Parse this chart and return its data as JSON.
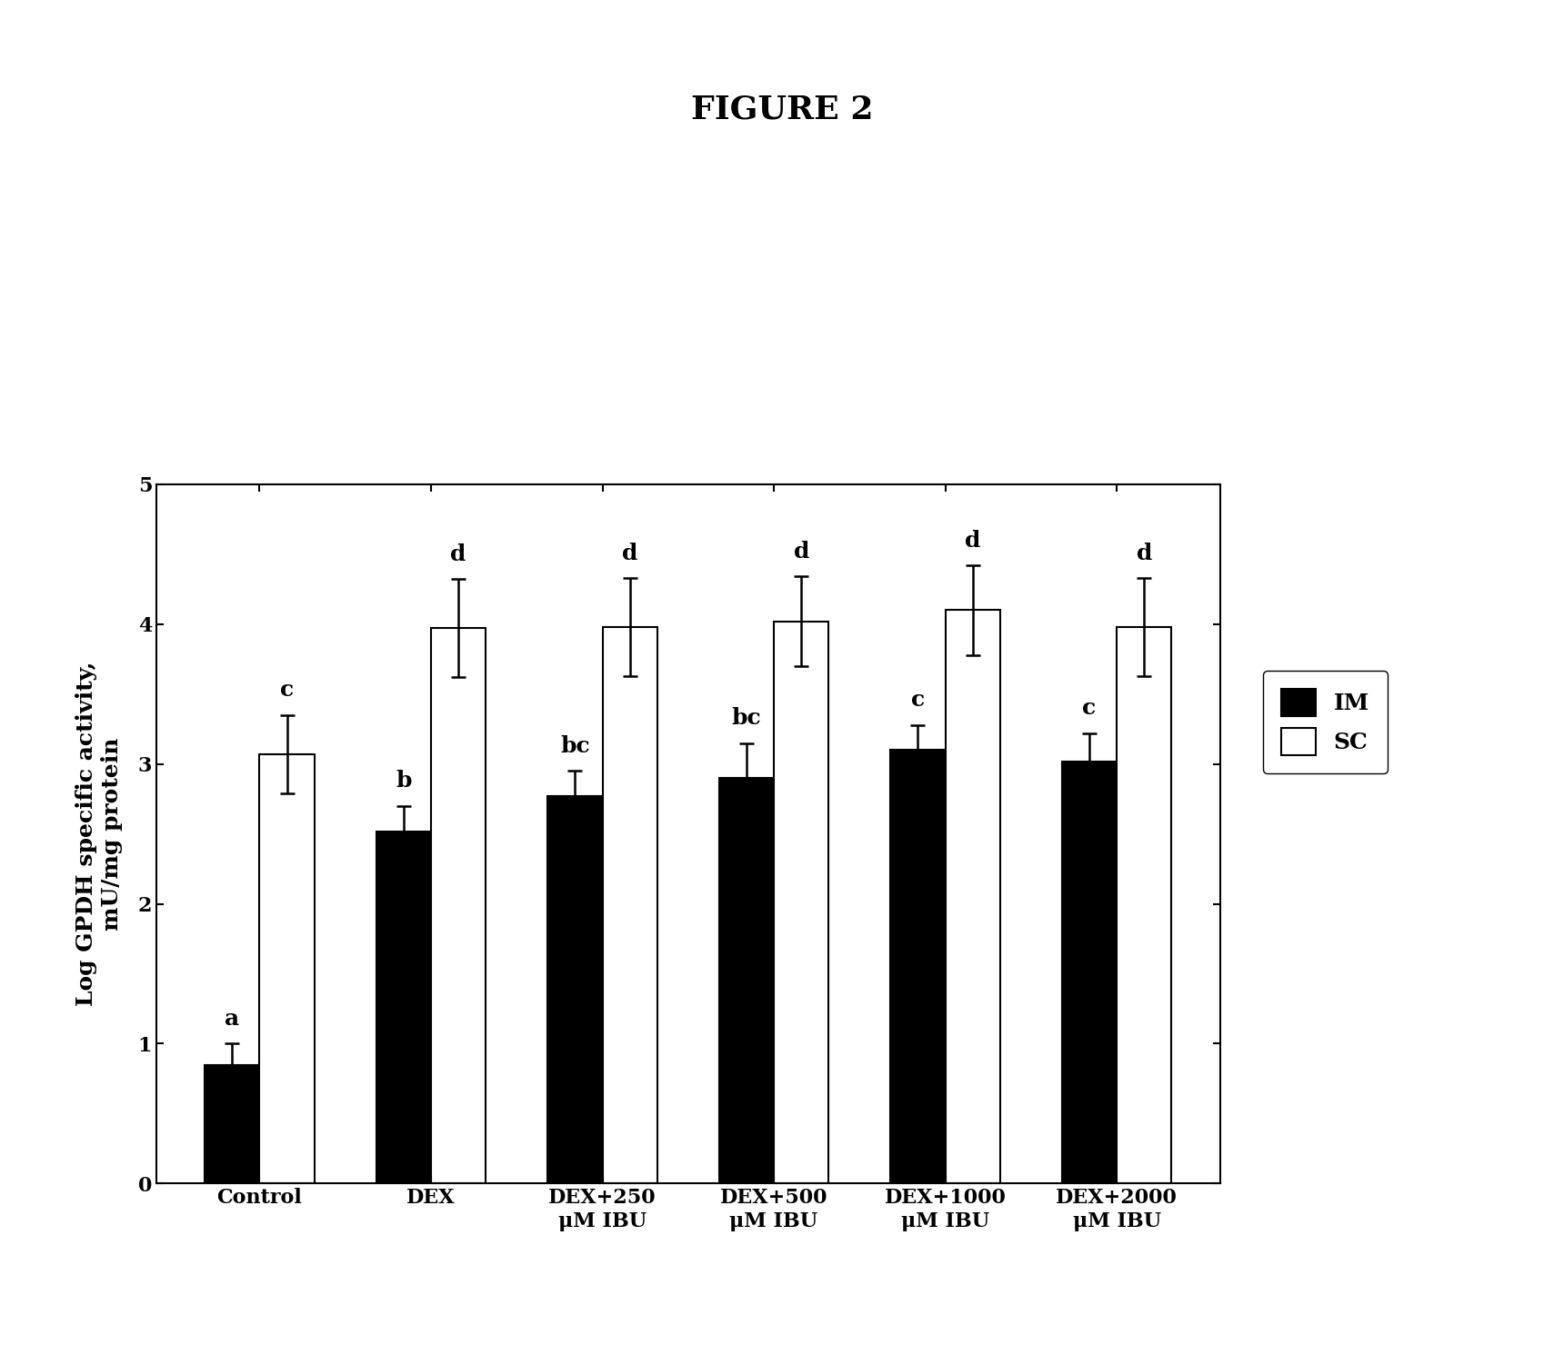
{
  "title": "FIGURE 2",
  "ylabel": "Log GPDH specific activity,\nmU/mg protein",
  "categories": [
    "Control",
    "DEX",
    "DEX+250\nμM IBU",
    "DEX+500\nμM IBU",
    "DEX+1000\nμM IBU",
    "DEX+2000\nμM IBU"
  ],
  "IM_values": [
    0.85,
    2.52,
    2.77,
    2.9,
    3.1,
    3.02
  ],
  "SC_values": [
    3.07,
    3.97,
    3.98,
    4.02,
    4.1,
    3.98
  ],
  "IM_errors": [
    0.15,
    0.18,
    0.18,
    0.25,
    0.18,
    0.2
  ],
  "SC_errors": [
    0.28,
    0.35,
    0.35,
    0.32,
    0.32,
    0.35
  ],
  "IM_letters": [
    "a",
    "b",
    "bc",
    "bc",
    "c",
    "c"
  ],
  "SC_letters": [
    "c",
    "d",
    "d",
    "d",
    "d",
    "d"
  ],
  "IM_color": "#000000",
  "SC_color": "#ffffff",
  "bar_edge_color": "#000000",
  "ylim": [
    0,
    5
  ],
  "yticks": [
    0,
    1,
    2,
    3,
    4,
    5
  ],
  "bar_width": 0.32,
  "legend_labels": [
    "IM",
    "SC"
  ],
  "title_fontsize": 26,
  "label_fontsize": 18,
  "tick_fontsize": 16,
  "letter_fontsize": 18,
  "legend_fontsize": 18,
  "figure_bg": "#ffffff"
}
